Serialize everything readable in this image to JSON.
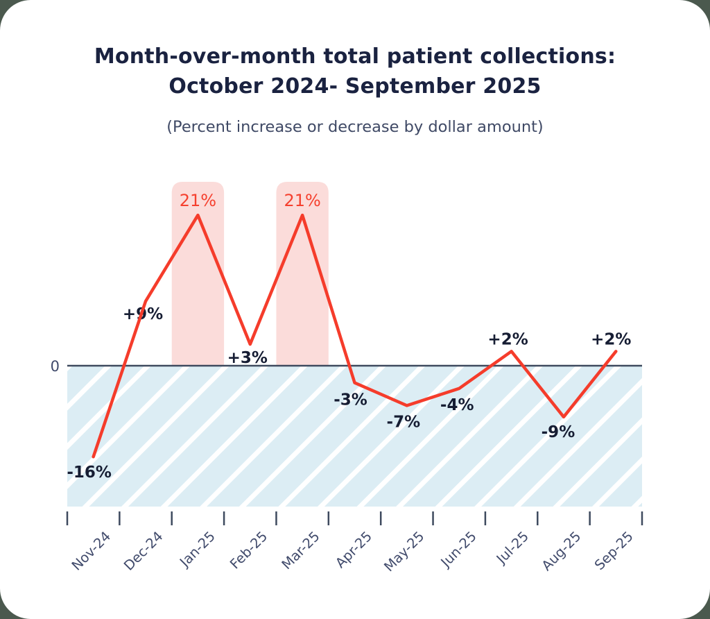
{
  "header": {
    "title_line1": "Month-over-month total patient collections:",
    "title_line2": "October 2024- September 2025",
    "subtitle": "(Percent increase or decrease by dollar amount)"
  },
  "chart_data": {
    "type": "line",
    "title": "Month-over-month total patient collections: October 2024- September 2025",
    "subtitle": "(Percent increase or decrease by dollar amount)",
    "categories": [
      "Nov-24",
      "Dec-24",
      "Jan-25",
      "Feb-25",
      "Mar-25",
      "Apr-25",
      "May-25",
      "Jun-25",
      "Jul-25",
      "Aug-25",
      "Sep-25"
    ],
    "values": [
      -16,
      9,
      21,
      3,
      21,
      -3,
      -7,
      -4,
      2,
      -9,
      2
    ],
    "point_labels": [
      "-16%",
      "+9%",
      "21%",
      "+3%",
      "21%",
      "-3%",
      "-7%",
      "-4%",
      "+2%",
      "-9%",
      "+2%"
    ],
    "highlighted_categories": [
      "Jan-25",
      "Mar-25"
    ],
    "zero_axis_label": "0",
    "xlabel": "",
    "ylabel": "",
    "ylim": [
      -26,
      26
    ],
    "grid": false,
    "legend": false,
    "colors": {
      "line": "#f53c2b",
      "highlight_band": "#fbdcda",
      "highlight_label": "#f5402e",
      "point_label": "#161d33",
      "axis": "#3e4a5e",
      "tick_label": "#404a6b",
      "negative_area_fill": "#dcedf4",
      "negative_area_stripe": "#ffffff",
      "card_background": "#ffffff",
      "page_background": "#4b594e",
      "title_text": "#1a2240",
      "subtitle_text": "#3f4965"
    }
  }
}
